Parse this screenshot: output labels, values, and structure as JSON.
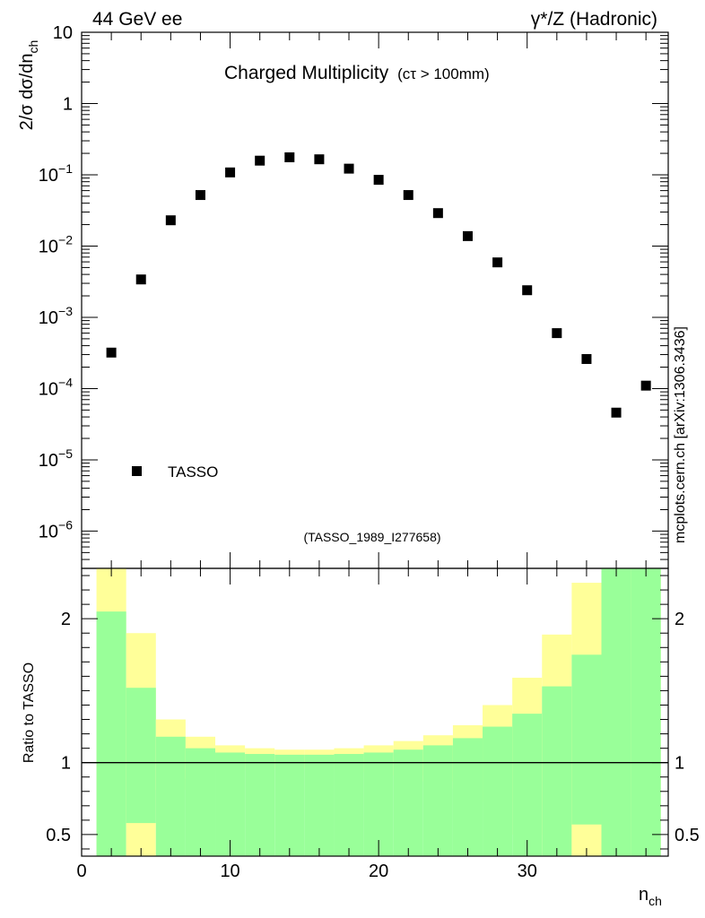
{
  "header": {
    "left_label": "44 GeV ee",
    "right_label": "γ*/Z (Hadronic)"
  },
  "side_label": "mcplots.cern.ch [arXiv:1306.3436]",
  "colors": {
    "band_outer": "#ffff99",
    "band_inner": "#99ff99",
    "marker": "#000000",
    "reference_label": "#999999"
  },
  "chart_data": [
    {
      "type": "scatter",
      "panel": "main",
      "title": "Charged Multiplicity",
      "title_suffix": "(cτ > 100mm)",
      "reference": "(TASSO_1989_I277658)",
      "ylabel": "2/σ dσ/dn_ch",
      "yscale": "log",
      "ylim": [
        3e-07,
        10
      ],
      "xlim": [
        0,
        39.5
      ],
      "ytick_labels": [
        {
          "value": 10,
          "mantissa": "10",
          "exp": ""
        },
        {
          "value": 1,
          "mantissa": "1",
          "exp": ""
        },
        {
          "value": 0.1,
          "mantissa": "10",
          "exp": "−1"
        },
        {
          "value": 0.01,
          "mantissa": "10",
          "exp": "−2"
        },
        {
          "value": 0.001,
          "mantissa": "10",
          "exp": "−3"
        },
        {
          "value": 0.0001,
          "mantissa": "10",
          "exp": "−4"
        },
        {
          "value": 1e-05,
          "mantissa": "10",
          "exp": "−5"
        },
        {
          "value": 1e-06,
          "mantissa": "10",
          "exp": "−6"
        }
      ],
      "legend": {
        "label": "TASSO",
        "position": "lower-left"
      },
      "series": [
        {
          "name": "TASSO",
          "x": [
            2,
            4,
            6,
            8,
            10,
            12,
            14,
            16,
            18,
            20,
            22,
            24,
            26,
            28,
            30,
            32,
            34,
            36,
            38
          ],
          "y": [
            0.00032,
            0.0034,
            0.023,
            0.052,
            0.108,
            0.158,
            0.176,
            0.165,
            0.122,
            0.085,
            0.052,
            0.029,
            0.0138,
            0.0059,
            0.0024,
            0.0006,
            0.00026,
            4.6e-05,
            0.00011
          ]
        }
      ]
    },
    {
      "type": "area",
      "panel": "ratio",
      "ylabel": "Ratio to TASSO",
      "xlabel": "n_ch",
      "ylim": [
        0.35,
        2.35
      ],
      "xlim": [
        0,
        39.5
      ],
      "xtick_labels": [
        0,
        10,
        20,
        30
      ],
      "ytick_labels": [
        0.5,
        1,
        2
      ],
      "reference_line": 1,
      "bands": {
        "edges": [
          1,
          3,
          5,
          7,
          9,
          11,
          13,
          15,
          17,
          19,
          21,
          23,
          25,
          27,
          29,
          31,
          33,
          35,
          37,
          39
        ],
        "outer_up": [
          2.4,
          1.9,
          1.3,
          1.18,
          1.12,
          1.1,
          1.09,
          1.09,
          1.1,
          1.12,
          1.15,
          1.19,
          1.26,
          1.4,
          1.59,
          1.89,
          2.25,
          2.4,
          2.4
        ],
        "outer_down": [
          0.35,
          0.35,
          0.81,
          0.89,
          0.94,
          0.955,
          0.96,
          0.96,
          0.95,
          0.935,
          0.91,
          0.87,
          0.82,
          0.73,
          0.5,
          0.35,
          0.35,
          0.35,
          0.35
        ],
        "inner_up": [
          2.05,
          1.52,
          1.18,
          1.1,
          1.07,
          1.06,
          1.055,
          1.055,
          1.06,
          1.07,
          1.09,
          1.12,
          1.17,
          1.25,
          1.34,
          1.53,
          1.75,
          2.4,
          2.4
        ],
        "inner_down": [
          0.35,
          0.58,
          0.35,
          0.35,
          0.35,
          0.35,
          0.35,
          0.35,
          0.35,
          0.35,
          0.35,
          0.35,
          0.35,
          0.35,
          0.35,
          0.35,
          0.57,
          0.35,
          0.35
        ]
      }
    }
  ]
}
